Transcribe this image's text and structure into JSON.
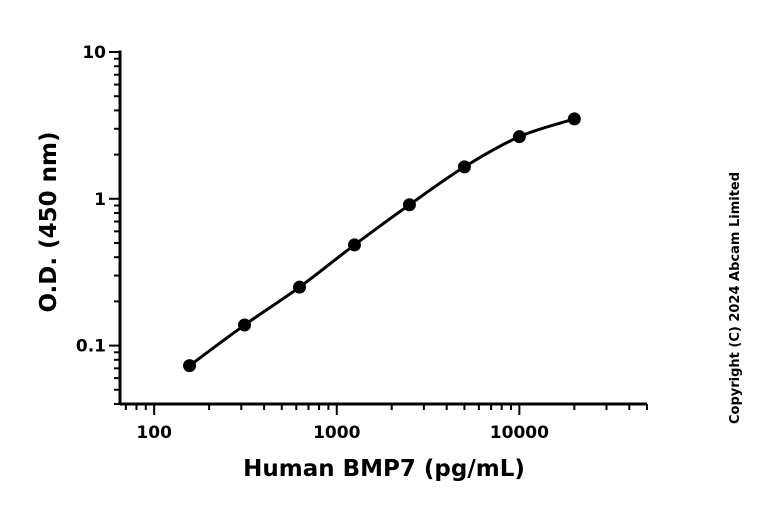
{
  "chart_data": {
    "type": "scatter",
    "xlabel": "Human BMP7 (pg/mL)",
    "ylabel": "O.D. (450 nm)",
    "xscale": "log",
    "yscale": "log",
    "xlim": [
      65,
      50000
    ],
    "ylim": [
      0.04,
      10
    ],
    "x_ticks": [
      100,
      1000,
      10000
    ],
    "x_tick_labels": [
      "100",
      "1000",
      "10000"
    ],
    "y_ticks": [
      0.1,
      1,
      10
    ],
    "y_tick_labels": [
      "0.1",
      "1",
      "10"
    ],
    "grid": false,
    "legend": "none",
    "fit_curve": true,
    "series": [
      {
        "x": [
          156.25,
          312.5,
          625,
          1250,
          2500,
          5000,
          10000,
          20000
        ],
        "y": [
          0.073,
          0.138,
          0.25,
          0.485,
          0.91,
          1.65,
          2.65,
          3.5
        ]
      }
    ],
    "colors": {
      "marker": "#000000",
      "line": "#000000"
    }
  },
  "copyright": "Copyright (C) 2024 Abcam Limited"
}
